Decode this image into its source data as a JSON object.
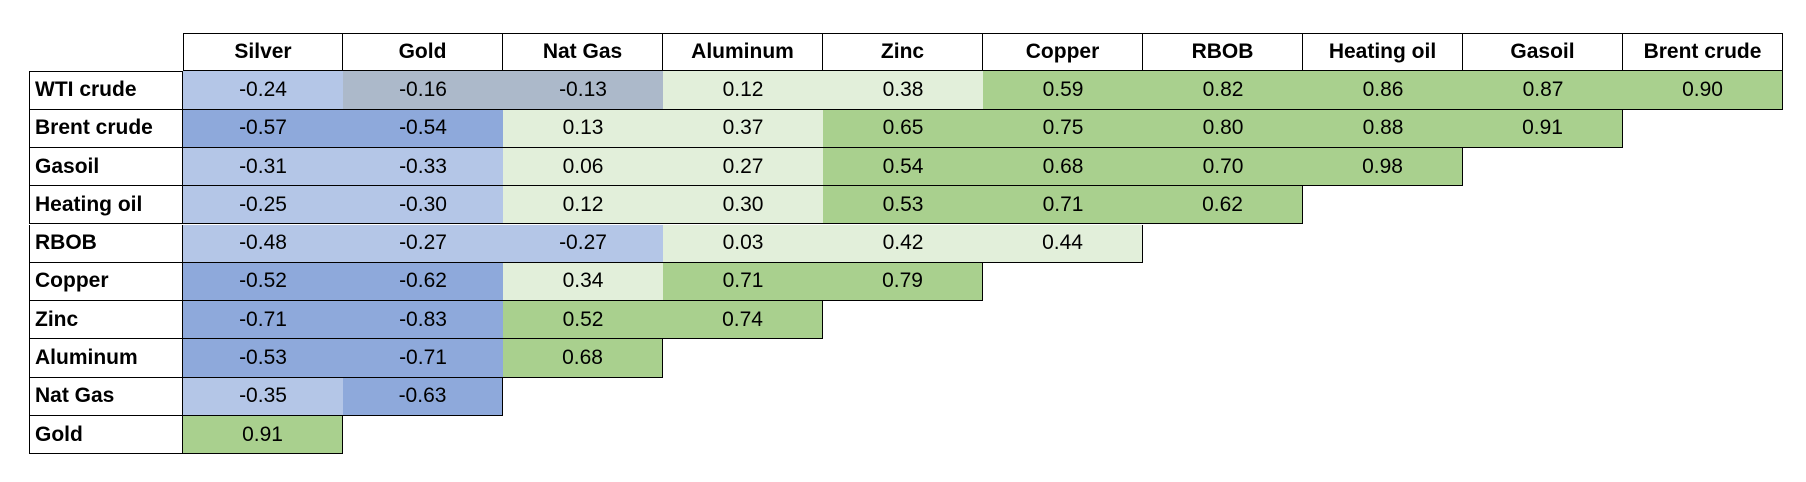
{
  "table": {
    "columns": [
      "Silver",
      "Gold",
      "Nat Gas",
      "Aluminum",
      "Zinc",
      "Copper",
      "RBOB",
      "Heating oil",
      "Gasoil",
      "Brent crude"
    ],
    "rows": [
      {
        "label": "WTI crude",
        "values": [
          "-0.24",
          "-0.16",
          "-0.13",
          "0.12",
          "0.38",
          "0.59",
          "0.82",
          "0.86",
          "0.87",
          "0.90"
        ]
      },
      {
        "label": "Brent crude",
        "values": [
          "-0.57",
          "-0.54",
          "0.13",
          "0.37",
          "0.65",
          "0.75",
          "0.80",
          "0.88",
          "0.91"
        ]
      },
      {
        "label": "Gasoil",
        "values": [
          "-0.31",
          "-0.33",
          "0.06",
          "0.27",
          "0.54",
          "0.68",
          "0.70",
          "0.98"
        ]
      },
      {
        "label": "Heating oil",
        "values": [
          "-0.25",
          "-0.30",
          "0.12",
          "0.30",
          "0.53",
          "0.71",
          "0.62"
        ]
      },
      {
        "label": "RBOB",
        "values": [
          "-0.48",
          "-0.27",
          "-0.27",
          "0.03",
          "0.42",
          "0.44"
        ]
      },
      {
        "label": "Copper",
        "values": [
          "-0.52",
          "-0.62",
          "0.34",
          "0.71",
          "0.79"
        ]
      },
      {
        "label": "Zinc",
        "values": [
          "-0.71",
          "-0.83",
          "0.52",
          "0.74"
        ]
      },
      {
        "label": "Aluminum",
        "values": [
          "-0.53",
          "-0.71",
          "0.68"
        ]
      },
      {
        "label": "Nat Gas",
        "values": [
          "-0.35",
          "-0.63"
        ]
      },
      {
        "label": "Gold",
        "values": [
          "0.91"
        ]
      }
    ]
  }
}
